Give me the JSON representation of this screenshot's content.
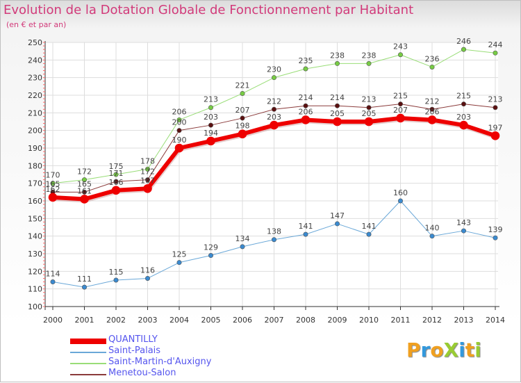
{
  "title": "Evolution de la Dotation Globale de Fonctionnement par Habitant",
  "subtitle": "(en € et par an)",
  "logo": {
    "text": "ProXiti",
    "letters": [
      {
        "ch": "P",
        "color": "#f0a020"
      },
      {
        "ch": "r",
        "color": "#3399dd"
      },
      {
        "ch": "o",
        "color": "#f0a020"
      },
      {
        "ch": "X",
        "color": "#99cc33"
      },
      {
        "ch": "i",
        "color": "#3399dd"
      },
      {
        "ch": "t",
        "color": "#f0a020"
      },
      {
        "ch": "i",
        "color": "#99cc33"
      }
    ]
  },
  "chart_data": {
    "type": "line",
    "title": "Evolution de la Dotation Globale de Fonctionnement par Habitant",
    "subtitle": "(en € et par an)",
    "x": [
      "2000",
      "2001",
      "2002",
      "2003",
      "2004",
      "2005",
      "2006",
      "2007",
      "2008",
      "2009",
      "2010",
      "2011",
      "2012",
      "2013",
      "2014"
    ],
    "ylim": [
      100,
      250
    ],
    "yticks": [
      100,
      110,
      120,
      130,
      140,
      150,
      160,
      170,
      180,
      190,
      200,
      210,
      220,
      230,
      240,
      250
    ],
    "grid": true,
    "legend_position": "bottom-left",
    "series": [
      {
        "name": "Saint-Palais",
        "color": "#6aa8d8",
        "marker": "#3a8ad0",
        "width": 1,
        "values": [
          114,
          111,
          115,
          116,
          125,
          129,
          134,
          138,
          141,
          147,
          141,
          160,
          140,
          143,
          139
        ],
        "labels": [
          "114",
          "111",
          "115",
          "116",
          "125",
          "129",
          "134",
          "138",
          "141",
          "147",
          "141",
          "160",
          "140",
          "143",
          "139"
        ]
      },
      {
        "name": "Saint-Martin-d'Auxigny",
        "color": "#99dd77",
        "marker": "#77cc44",
        "width": 1,
        "values": [
          170,
          172,
          175,
          178,
          206,
          213,
          221,
          230,
          235,
          238,
          238,
          243,
          236,
          246,
          244
        ],
        "labels": [
          "170",
          "172",
          "175",
          "178",
          "206",
          "213",
          "221",
          "230",
          "235",
          "238",
          "238",
          "243",
          "236",
          "246",
          "244"
        ]
      },
      {
        "name": "Menetou-Salon",
        "color": "#8a3a3a",
        "marker": "#5a1010",
        "width": 1,
        "values": [
          165,
          165,
          171,
          172,
          200,
          203,
          207,
          212,
          214,
          214,
          213,
          215,
          212,
          215,
          213
        ],
        "labels": [
          "165",
          "165",
          "171",
          "172",
          "200",
          "203",
          "207",
          "212",
          "214",
          "214",
          "213",
          "215",
          "212",
          "215",
          "213"
        ]
      },
      {
        "name": "QUANTILLY",
        "color": "#ee0000",
        "marker": "#ee0000",
        "width": 6,
        "values": [
          162,
          161,
          166,
          167,
          190,
          194,
          198,
          203,
          206,
          205,
          205,
          207,
          206,
          203,
          197
        ],
        "labels": [
          "162",
          "161",
          "166",
          "167",
          "190",
          "194",
          "198",
          "203",
          "206",
          "205",
          "205",
          "207",
          "206",
          "203",
          "197"
        ]
      }
    ]
  },
  "legend": [
    {
      "name": "QUANTILLY",
      "color": "#ee0000",
      "thickness": 8
    },
    {
      "name": "Saint-Palais",
      "color": "#6aa8d8",
      "thickness": 2
    },
    {
      "name": "Saint-Martin-d'Auxigny",
      "color": "#99dd77",
      "thickness": 2
    },
    {
      "name": "Menetou-Salon",
      "color": "#8a3a3a",
      "thickness": 2
    }
  ]
}
